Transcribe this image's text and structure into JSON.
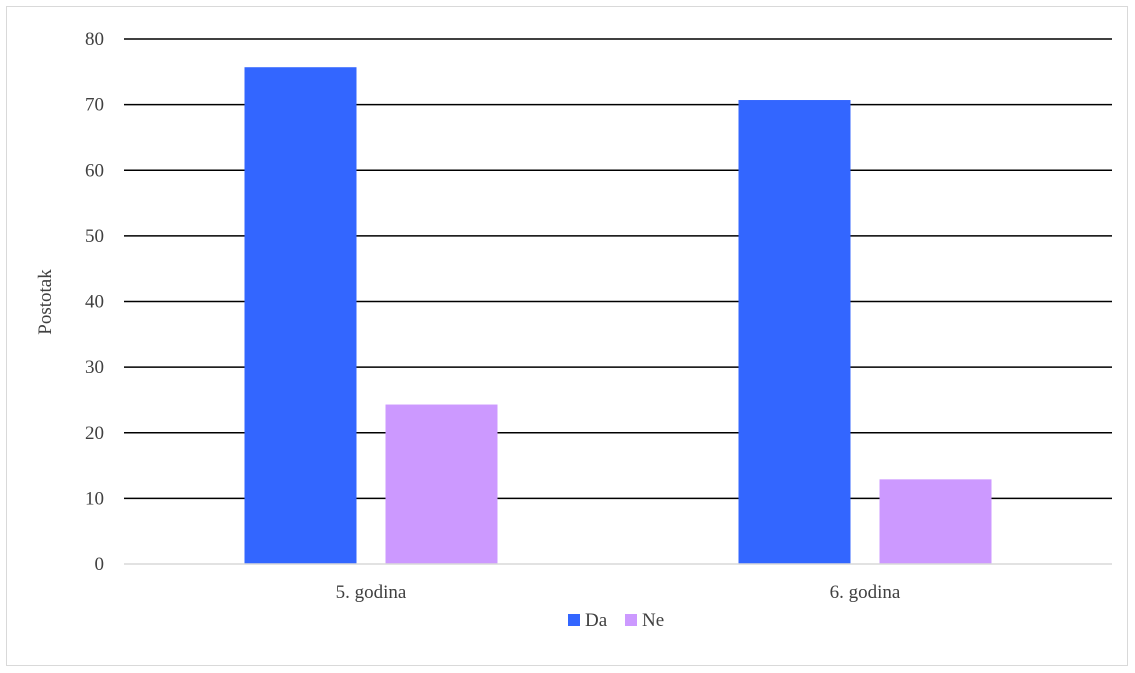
{
  "chart_data": {
    "type": "bar",
    "title": "",
    "xlabel": "",
    "ylabel": "Postotak",
    "categories": [
      "5. godina",
      "6. godina"
    ],
    "series": [
      {
        "name": "Da",
        "values": [
          75.7,
          70.7
        ],
        "color": "#3366ff"
      },
      {
        "name": "Ne",
        "values": [
          24.3,
          12.9
        ],
        "color": "#cc99ff"
      }
    ],
    "ylim": [
      0,
      80
    ],
    "yticks": [
      0,
      10,
      20,
      30,
      40,
      50,
      60,
      70,
      80
    ],
    "grid": true,
    "legend": "bottom"
  }
}
